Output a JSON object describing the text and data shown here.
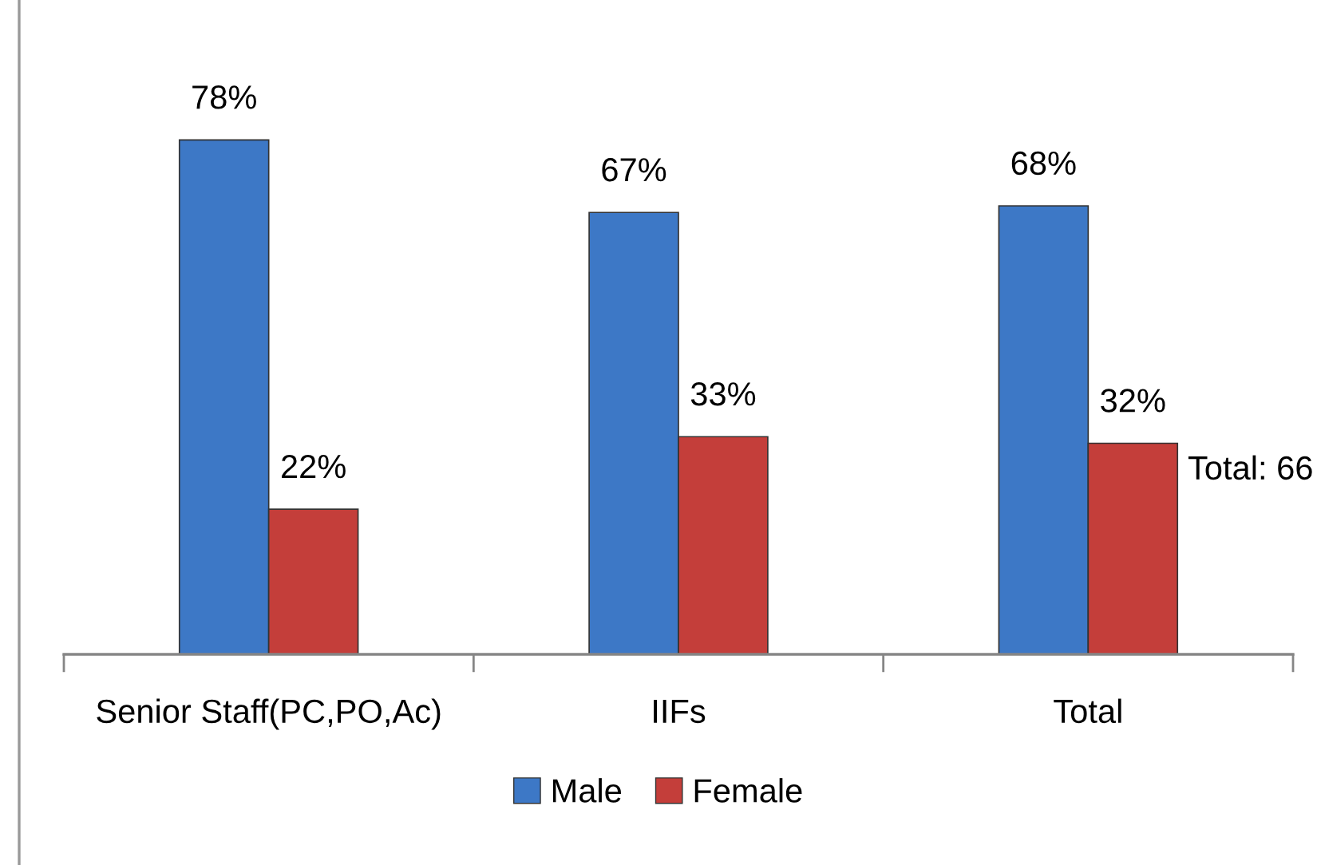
{
  "chart_data": {
    "type": "bar",
    "categories": [
      "Senior Staff(PC,PO,Ac)",
      "IIFs",
      "Total"
    ],
    "series": [
      {
        "name": "Male",
        "color": "#3d78c6",
        "values": [
          78,
          67,
          68
        ],
        "value_labels": [
          "78%",
          "67%",
          "68%"
        ]
      },
      {
        "name": "Female",
        "color": "#c43e3a",
        "values": [
          22,
          33,
          32
        ],
        "value_labels": [
          "22%",
          "33%",
          "32%"
        ]
      }
    ],
    "legend": "bottom",
    "annotations": [
      "Total: 66"
    ]
  }
}
